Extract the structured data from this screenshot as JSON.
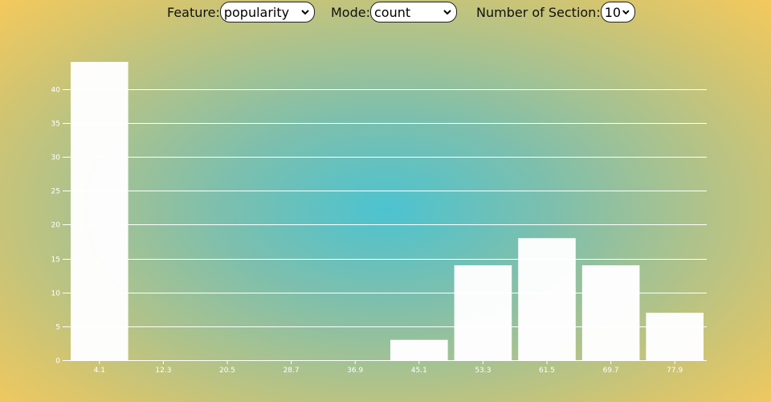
{
  "controls": {
    "feature": {
      "label": "Feature:",
      "value": "popularity"
    },
    "mode": {
      "label": "Mode:",
      "value": "count"
    },
    "sections": {
      "label": "Number of Section:",
      "value": "10"
    }
  },
  "colors": {
    "bar": "#ffffff",
    "gridline": "#ffffff",
    "background_center": "#4cc3d0",
    "background_edge": "#f4c95c"
  },
  "chart_data": {
    "type": "bar",
    "categories": [
      "4.1",
      "12.3",
      "20.5",
      "28.7",
      "36.9",
      "45.1",
      "53.3",
      "61.5",
      "69.7",
      "77.9"
    ],
    "values": [
      44,
      0,
      0,
      0,
      0,
      3,
      14,
      18,
      14,
      7
    ],
    "yticks": [
      0,
      5,
      10,
      15,
      20,
      25,
      30,
      35,
      40
    ],
    "ylim": [
      0,
      44
    ],
    "grid": true,
    "title": "",
    "xlabel": "",
    "ylabel": ""
  }
}
